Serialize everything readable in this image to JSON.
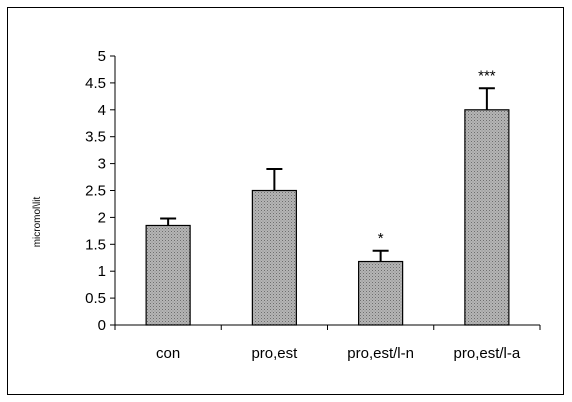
{
  "chart_data": {
    "type": "bar",
    "title": "",
    "xlabel": "",
    "ylabel": "micromol\\lit",
    "ylim": [
      0,
      5
    ],
    "yticks": [
      "0",
      "0.5",
      "1",
      "1.5",
      "2",
      "2.5",
      "3",
      "3.5",
      "4",
      "4.5",
      "5"
    ],
    "categories": [
      "con",
      "pro,est",
      "pro,est/l-n",
      "pro,est/l-a"
    ],
    "values": [
      1.85,
      2.5,
      1.18,
      4.0
    ],
    "errors": [
      0.13,
      0.4,
      0.2,
      0.4
    ],
    "annotations": [
      "",
      "",
      "*",
      "***"
    ],
    "bar_fill": "#a8a8a8",
    "grid": false,
    "legend": "none"
  }
}
